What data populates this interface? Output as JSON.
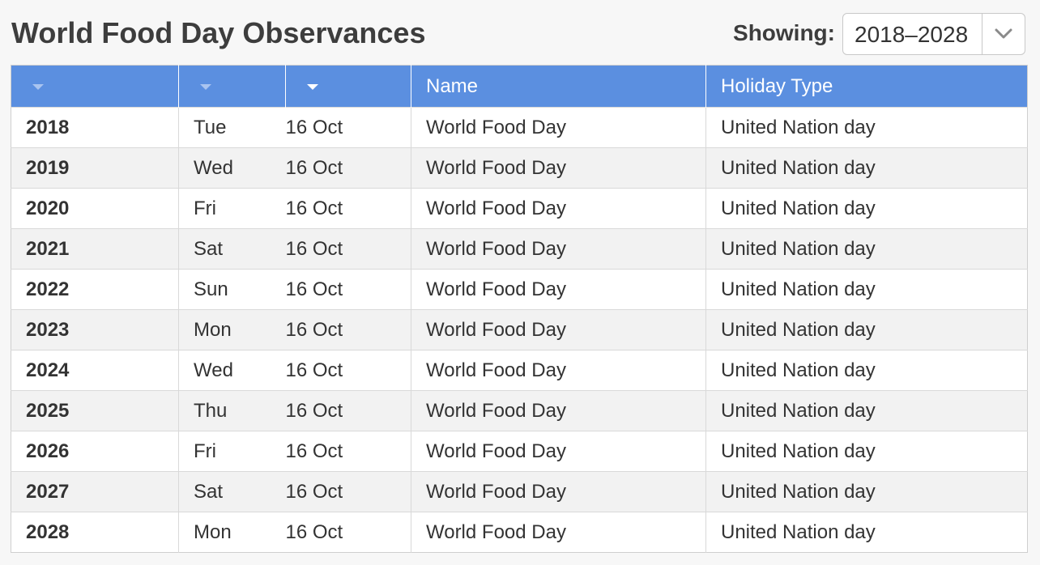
{
  "page": {
    "title": "World Food Day Observances"
  },
  "filter": {
    "label": "Showing:",
    "selected_range": "2018–2028",
    "dropdown_icon": "chevron-down-icon"
  },
  "table": {
    "header_color": "#5b8fe0",
    "columns": [
      {
        "key": "year",
        "label": "",
        "sort_icon": "sort-arrow-icon"
      },
      {
        "key": "weekday",
        "label": "",
        "sort_icon": "sort-arrow-icon"
      },
      {
        "key": "date",
        "label": "",
        "sort_icon": "sort-arrow-icon",
        "sorted": true
      },
      {
        "key": "name",
        "label": "Name"
      },
      {
        "key": "type",
        "label": "Holiday Type"
      }
    ],
    "rows": [
      {
        "year": "2018",
        "weekday": "Tue",
        "date": "16 Oct",
        "name": "World Food Day",
        "type": "United Nation day"
      },
      {
        "year": "2019",
        "weekday": "Wed",
        "date": "16 Oct",
        "name": "World Food Day",
        "type": "United Nation day"
      },
      {
        "year": "2020",
        "weekday": "Fri",
        "date": "16 Oct",
        "name": "World Food Day",
        "type": "United Nation day"
      },
      {
        "year": "2021",
        "weekday": "Sat",
        "date": "16 Oct",
        "name": "World Food Day",
        "type": "United Nation day"
      },
      {
        "year": "2022",
        "weekday": "Sun",
        "date": "16 Oct",
        "name": "World Food Day",
        "type": "United Nation day"
      },
      {
        "year": "2023",
        "weekday": "Mon",
        "date": "16 Oct",
        "name": "World Food Day",
        "type": "United Nation day"
      },
      {
        "year": "2024",
        "weekday": "Wed",
        "date": "16 Oct",
        "name": "World Food Day",
        "type": "United Nation day"
      },
      {
        "year": "2025",
        "weekday": "Thu",
        "date": "16 Oct",
        "name": "World Food Day",
        "type": "United Nation day"
      },
      {
        "year": "2026",
        "weekday": "Fri",
        "date": "16 Oct",
        "name": "World Food Day",
        "type": "United Nation day"
      },
      {
        "year": "2027",
        "weekday": "Sat",
        "date": "16 Oct",
        "name": "World Food Day",
        "type": "United Nation day"
      },
      {
        "year": "2028",
        "weekday": "Mon",
        "date": "16 Oct",
        "name": "World Food Day",
        "type": "United Nation day"
      }
    ]
  }
}
